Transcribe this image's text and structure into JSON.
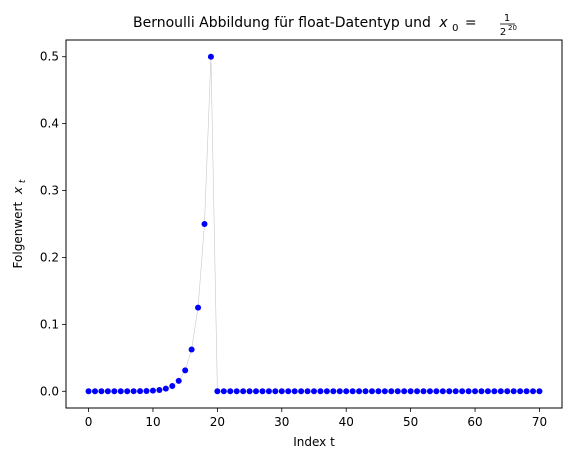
{
  "chart_data": {
    "type": "scatter",
    "title": "Bernoulli Abbildung für float-Datentyp und",
    "title_math": {
      "var": "x",
      "sub": "0",
      "eq": "=",
      "num": "1",
      "den_base": "2",
      "den_exp": "20"
    },
    "xlabel": "Index t",
    "ylabel_text": "Folgenwert",
    "ylabel_var": "x",
    "ylabel_sub": "t",
    "xlim": [
      -3.5,
      73.5
    ],
    "ylim": [
      -0.025,
      0.525
    ],
    "xticks": [
      0,
      10,
      20,
      30,
      40,
      50,
      60,
      70
    ],
    "xtick_labels": [
      "0",
      "10",
      "20",
      "30",
      "40",
      "50",
      "60",
      "70"
    ],
    "yticks": [
      0.0,
      0.1,
      0.2,
      0.3,
      0.4,
      0.5
    ],
    "ytick_labels": [
      "0.0",
      "0.1",
      "0.2",
      "0.3",
      "0.4",
      "0.5"
    ],
    "grid": false,
    "marker_color": "#0000ff",
    "line_color": "#c8c8c8",
    "series": [
      {
        "x": [
          0,
          1,
          2,
          3,
          4,
          5,
          6,
          7,
          8,
          9,
          10,
          11,
          12,
          13,
          14,
          15,
          16,
          17,
          18,
          19,
          20,
          21,
          22,
          23,
          24,
          25,
          26,
          27,
          28,
          29,
          30,
          31,
          32,
          33,
          34,
          35,
          36,
          37,
          38,
          39,
          40,
          41,
          42,
          43,
          44,
          45,
          46,
          47,
          48,
          49,
          50,
          51,
          52,
          53,
          54,
          55,
          56,
          57,
          58,
          59,
          60,
          61,
          62,
          63,
          64,
          65,
          66,
          67,
          68,
          69,
          70
        ],
        "values": [
          9.5367e-07,
          1.9073e-06,
          3.8147e-06,
          7.6294e-06,
          1.5259e-05,
          3.0518e-05,
          6.1035e-05,
          0.00012207,
          0.00024414,
          0.00048828,
          0.00097656,
          0.0019531,
          0.0039063,
          0.0078125,
          0.015625,
          0.03125,
          0.0625,
          0.125,
          0.25,
          0.5,
          0,
          0,
          0,
          0,
          0,
          0,
          0,
          0,
          0,
          0,
          0,
          0,
          0,
          0,
          0,
          0,
          0,
          0,
          0,
          0,
          0,
          0,
          0,
          0,
          0,
          0,
          0,
          0,
          0,
          0,
          0,
          0,
          0,
          0,
          0,
          0,
          0,
          0,
          0,
          0,
          0,
          0,
          0,
          0,
          0,
          0,
          0,
          0,
          0,
          0,
          0
        ]
      }
    ]
  }
}
